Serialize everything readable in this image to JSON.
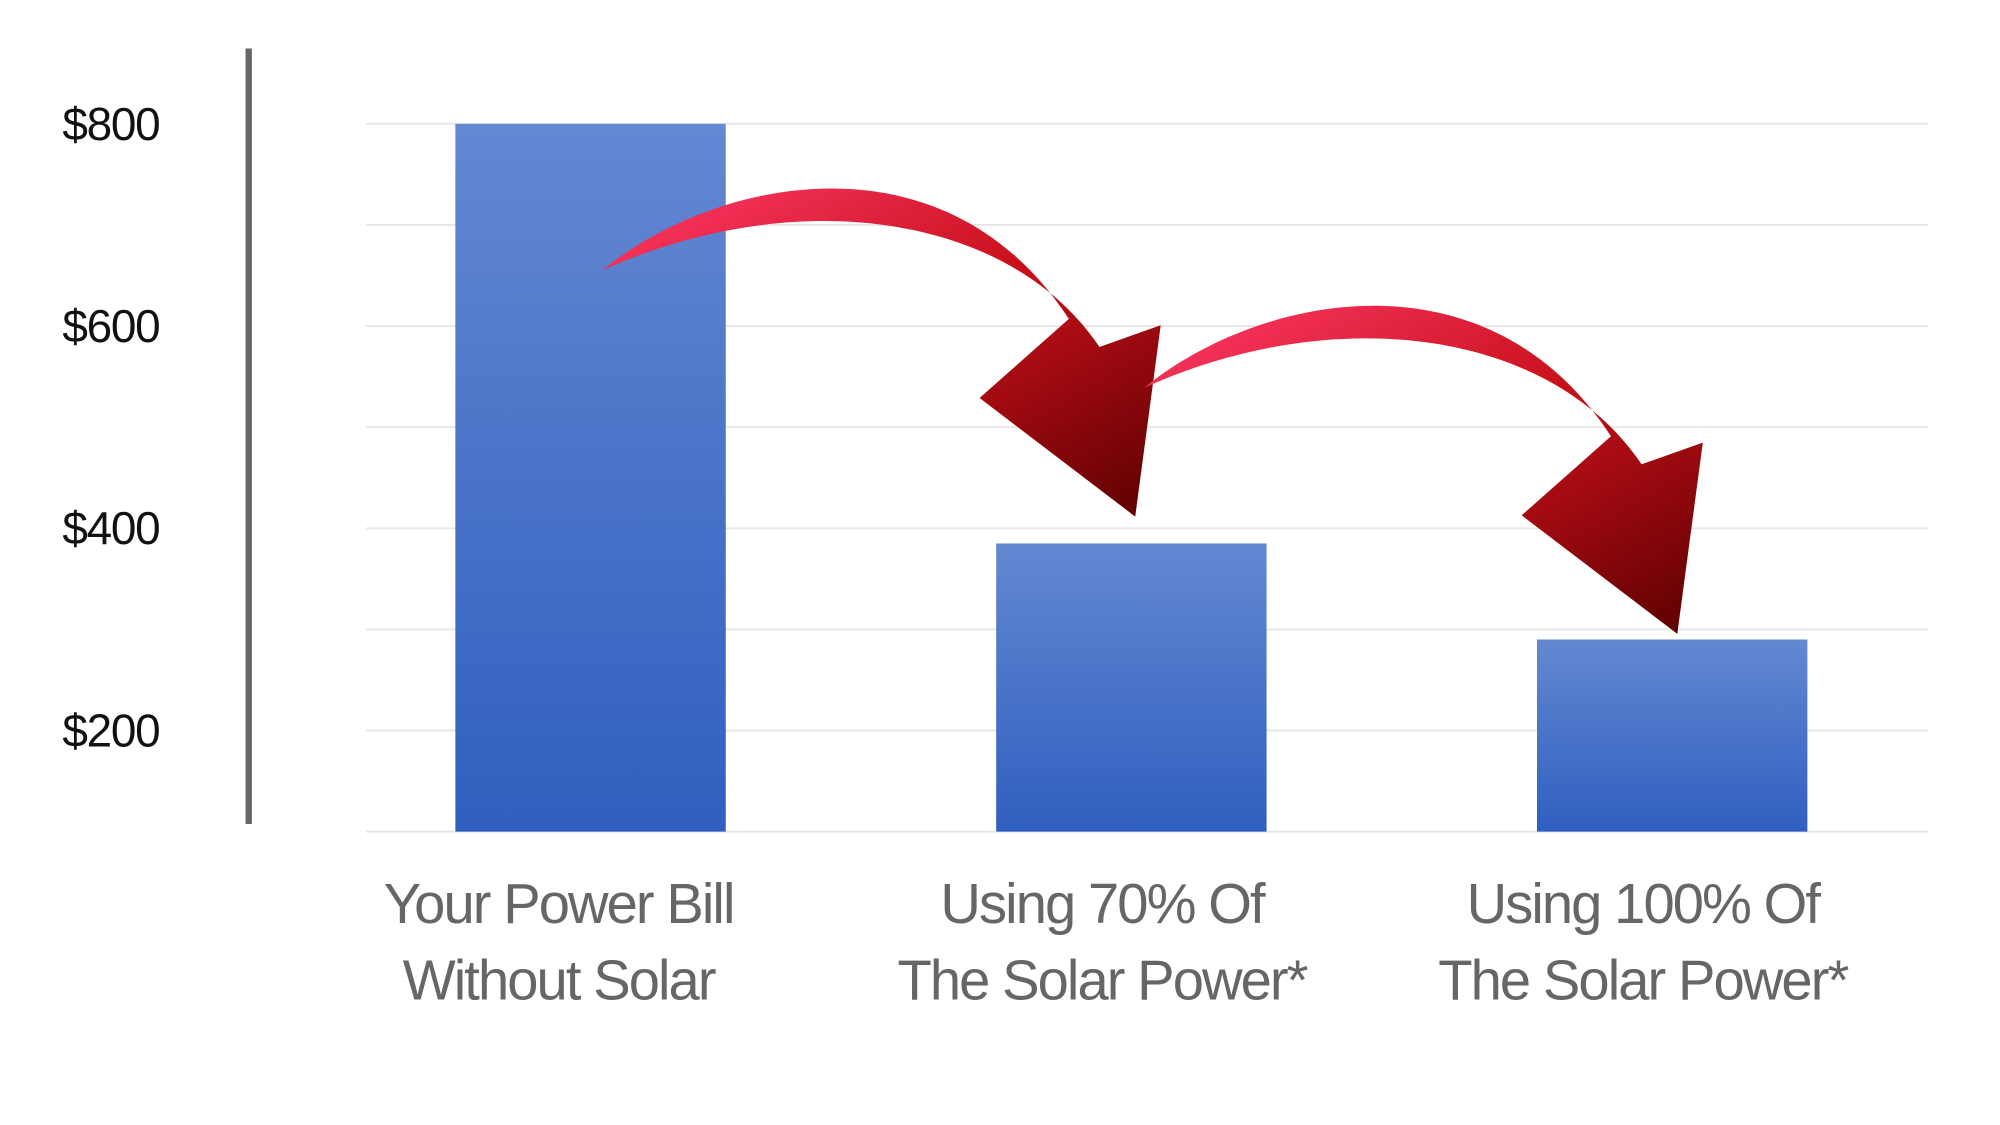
{
  "chart_data": {
    "type": "bar",
    "categories": [
      [
        "Your Power Bill",
        "Without Solar"
      ],
      [
        "Using 70% Of",
        "The Solar Power*"
      ],
      [
        "Using 100% Of",
        "The Solar Power*"
      ]
    ],
    "values": [
      800,
      385,
      290
    ],
    "color": "#4a74cc",
    "ylim": [
      100,
      872
    ],
    "yticks": [
      {
        "value": 200,
        "label": "$200"
      },
      {
        "value": 400,
        "label": "$400"
      },
      {
        "value": 600,
        "label": "$600"
      },
      {
        "value": 800,
        "label": "$800"
      }
    ],
    "minor_yticks": [
      100,
      300,
      500,
      700
    ],
    "grid": true
  }
}
